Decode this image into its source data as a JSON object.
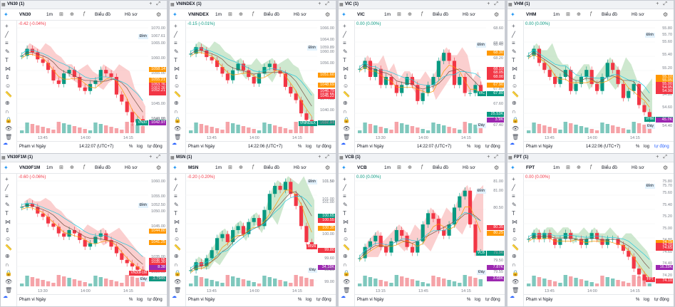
{
  "common": {
    "timeframe": "1m",
    "chart_type_label": "Biểu đồ",
    "profile_label": "Hồ sơ",
    "range_label": "Phạm vi Ngày",
    "pct_label": "%",
    "log_label": "log",
    "auto_label": "tự động"
  },
  "colors": {
    "up": "#089981",
    "down": "#f23645",
    "cloud_up": "#a5d6a7",
    "cloud_down": "#f7a8a8",
    "accent": "#2962ff",
    "volume_up": "#7fc8bd",
    "volume_down": "#f5a3a8"
  },
  "panels": [
    {
      "tab": "VN30 (1)",
      "symbol": "VN30",
      "change": "-0.42 (-0.04%)",
      "change_dir": "neg",
      "time": "14:22:07 (UTC+7)",
      "auto_selected": false,
      "tag": "VN30",
      "tag_color": "#089981",
      "chart_data": {
        "type": "candlestick",
        "title": "",
        "x_ticks": [
          "13:45",
          "14:00",
          "14:15"
        ],
        "y_ticks": [
          "1070.00",
          "1065.00",
          "1060.00",
          "1055.00",
          "1050.00",
          "1045.00",
          "1040.00"
        ],
        "ylim": [
          1040,
          1072
        ],
        "closes": [
          1062,
          1064,
          1063,
          1061,
          1060,
          1058,
          1055,
          1054,
          1057,
          1058,
          1056,
          1053,
          1052,
          1054,
          1055,
          1058,
          1057,
          1056,
          1051,
          1049,
          1046,
          1043,
          1044,
          1043
        ],
        "price_labels": [
          {
            "text": "Đỉnh",
            "value": "1067.61",
            "color": "#ffffff",
            "kind": "txt"
          },
          {
            "text": "",
            "value": "1058.14",
            "color": "#ff9800"
          },
          {
            "text": "",
            "value": "1055.21",
            "color": "#ff9800"
          },
          {
            "text": "",
            "value": "1053.76",
            "color": "#f23645"
          },
          {
            "text": "",
            "value": "1052.76",
            "color": "#f23645"
          },
          {
            "text": "",
            "value": "1051.49",
            "color": "#f23645"
          },
          {
            "text": "",
            "value": "1052.21",
            "color": "#f23645"
          },
          {
            "text": "",
            "value": "1043.17",
            "color": "#089981"
          },
          {
            "text": "",
            "value": "1043.92",
            "color": "#7a7f89",
            "kind": "txt"
          },
          {
            "text": "Đáy",
            "value": "1042.97",
            "color": "#ffffff",
            "kind": "txt"
          },
          {
            "text": "",
            "value": "1042.97",
            "color": "#9c27b0"
          }
        ]
      }
    },
    {
      "tab": "VNINDEX (1)",
      "symbol": "VNINDEX",
      "change": "-0.15 (-0.01%)",
      "change_dir": "pos",
      "time": "14:22:06 (UTC+7)",
      "auto_selected": false,
      "tag": "VNINDEX",
      "tag_color": "#089981",
      "chart_data": {
        "type": "candlestick",
        "title": "",
        "x_ticks": [
          "13:45",
          "14:00",
          "14:15"
        ],
        "y_ticks": [
          "1066.00",
          "1064.00",
          "1060.00",
          "1056.00",
          "1052.00",
          "1048.00",
          "1044.00",
          "1040.00",
          "1036.00"
        ],
        "ylim": [
          1034,
          1068
        ],
        "closes": [
          1058,
          1060,
          1059,
          1057,
          1056,
          1054,
          1052,
          1050,
          1053,
          1055,
          1053,
          1051,
          1049,
          1052,
          1054,
          1055,
          1053,
          1052,
          1048,
          1046,
          1044,
          1040,
          1038,
          1037
        ],
        "price_labels": [
          {
            "text": "Đỉnh",
            "value": "1059.89",
            "color": "#ffffff",
            "kind": "txt"
          },
          {
            "text": "",
            "value": "1051.60",
            "color": "#ff9800"
          },
          {
            "text": "",
            "value": "1048.69",
            "color": "#ff9800"
          },
          {
            "text": "",
            "value": "1046.79",
            "color": "#f23645"
          },
          {
            "text": "",
            "value": "1045.55",
            "color": "#f23645"
          },
          {
            "text": "",
            "value": "1045.28",
            "color": "#f23645"
          },
          {
            "text": "",
            "value": "1045.22",
            "color": "#f23645"
          },
          {
            "text": "",
            "value": "1037.14",
            "color": "#089981"
          },
          {
            "text": "",
            "value": "1037.14",
            "color": "#7a7f89",
            "kind": "txt"
          },
          {
            "text": "Đáy",
            "value": "1036.91",
            "color": "#ffffff",
            "kind": "txt"
          }
        ]
      }
    },
    {
      "tab": "VIC (1)",
      "symbol": "VIC",
      "change": "0.00 (0.00%)",
      "change_dir": "pos",
      "time": "14:22:07 (UTC+7)",
      "auto_selected": false,
      "tag": "VIC",
      "tag_color": "#089981",
      "chart_data": {
        "type": "candlestick",
        "title": "",
        "x_ticks": [
          "13:30",
          "14:00",
          "14:15"
        ],
        "y_ticks": [
          "68.60",
          "68.40",
          "68.20",
          "68.00",
          "67.80",
          "67.60",
          "67.40"
        ],
        "ylim": [
          67.3,
          68.7
        ],
        "closes": [
          68.1,
          68.2,
          68.0,
          68.1,
          67.9,
          68.0,
          67.9,
          67.8,
          67.9,
          68.0,
          67.9,
          67.7,
          67.8,
          67.9,
          68.0,
          68.2,
          68.3,
          68.2,
          67.9,
          68.0,
          67.8,
          67.8,
          67.9,
          67.8
        ],
        "price_labels": [
          {
            "text": "Đỉnh",
            "value": "68.40",
            "color": "#ffffff",
            "kind": "txt"
          },
          {
            "text": "",
            "value": "68.30",
            "color": "#ff9800"
          },
          {
            "text": "",
            "value": "68.10",
            "color": "#ff9800"
          },
          {
            "text": "",
            "value": "68.10",
            "color": "#f23645"
          },
          {
            "text": "",
            "value": "68.05",
            "color": "#f23645"
          },
          {
            "text": "",
            "value": "68.00",
            "color": "#f23645"
          },
          {
            "text": "",
            "value": "67.90",
            "color": "#ff9800"
          },
          {
            "text": "",
            "value": "67.80",
            "color": "#089981"
          },
          {
            "text": "Đáy",
            "value": "67.40",
            "color": "#ffffff",
            "kind": "txt"
          },
          {
            "text": "",
            "value": "25.53K",
            "color": "#089981"
          },
          {
            "text": "",
            "value": "3.9K",
            "color": "#9c27b0"
          }
        ]
      }
    },
    {
      "tab": "VHM (1)",
      "symbol": "VHM",
      "change": "0.00 (0.00%)",
      "change_dir": "pos",
      "time": "14:22:06 (UTC+7)",
      "auto_selected": true,
      "tag": "VHM",
      "tag_color": "#089981",
      "chart_data": {
        "type": "candlestick",
        "title": "",
        "x_ticks": [
          "13:45",
          "14:00",
          "14:15"
        ],
        "y_ticks": [
          "55.80",
          "55.60",
          "55.40",
          "55.20",
          "55.00",
          "54.80",
          "54.60",
          "54.40"
        ],
        "ylim": [
          54.3,
          55.9
        ],
        "closes": [
          55.4,
          55.5,
          55.3,
          55.2,
          55.1,
          55.0,
          55.1,
          55.2,
          54.9,
          55.0,
          55.1,
          55.2,
          55.0,
          54.9,
          55.1,
          55.3,
          55.2,
          55.0,
          54.8,
          54.9,
          55.0,
          54.7,
          54.6,
          54.5
        ],
        "price_labels": [
          {
            "text": "Đỉnh",
            "value": "55.70",
            "color": "#ffffff",
            "kind": "txt"
          },
          {
            "text": "",
            "value": "55.10",
            "color": "#ff9800"
          },
          {
            "text": "",
            "value": "55.05",
            "color": "#ff9800"
          },
          {
            "text": "",
            "value": "54.95",
            "color": "#f23645"
          },
          {
            "text": "",
            "value": "55.00",
            "color": "#f23645"
          },
          {
            "text": "",
            "value": "54.95",
            "color": "#f23645"
          },
          {
            "text": "",
            "value": "54.90",
            "color": "#f23645"
          },
          {
            "text": "",
            "value": "54.50",
            "color": "#089981"
          },
          {
            "text": "",
            "value": "54.50",
            "color": "#7a7f89",
            "kind": "txt"
          },
          {
            "text": "Đáy",
            "value": "54.40",
            "color": "#ffffff",
            "kind": "txt"
          },
          {
            "text": "",
            "value": "45.7K",
            "color": "#9c27b0"
          }
        ]
      }
    },
    {
      "tab": "VN30F1M (1)",
      "symbol": "VN30F1M",
      "change": "-0.60 (-0.06%)",
      "change_dir": "neg",
      "time": "",
      "auto_selected": false,
      "tag": "VN30F1M",
      "tag_color": "#f23645",
      "chart_data": {
        "type": "candlestick",
        "title": "",
        "x_ticks": [
          "13:30",
          "14:00",
          "14:15"
        ],
        "y_ticks": [
          "1060.00",
          "1055.00",
          "1050.00",
          "1045.00",
          "1040.00",
          "1035.00",
          "1030.00"
        ],
        "ylim": [
          1028,
          1062
        ],
        "closes": [
          1052,
          1053,
          1052,
          1050,
          1049,
          1047,
          1046,
          1044,
          1043,
          1045,
          1044,
          1042,
          1040,
          1041,
          1043,
          1044,
          1042,
          1040,
          1038,
          1036,
          1035,
          1034,
          1033,
          1032
        ],
        "price_labels": [
          {
            "text": "Đỉnh",
            "value": "1052.50",
            "color": "#ffffff",
            "kind": "txt"
          },
          {
            "text": "",
            "value": "1044.80",
            "color": "#ff9800"
          },
          {
            "text": "",
            "value": "1041.25",
            "color": "#ff9800"
          },
          {
            "text": "",
            "value": "1035.05",
            "color": "#f23645"
          },
          {
            "text": "",
            "value": "1036.05",
            "color": "#f23645"
          },
          {
            "text": "",
            "value": "1035.30",
            "color": "#f23645"
          },
          {
            "text": "",
            "value": "1033.20",
            "color": "#f23645"
          },
          {
            "text": "",
            "value": "2.794K",
            "color": "#089981"
          },
          {
            "text": "Đáy",
            "value": "1030.20",
            "color": "#ffffff",
            "kind": "txt"
          },
          {
            "text": "",
            "value": "8.38",
            "color": "#9c27b0"
          }
        ]
      }
    },
    {
      "tab": "MSN (1)",
      "symbol": "MSN",
      "change": "-0.20 (-0.20%)",
      "change_dir": "neg",
      "time": "",
      "auto_selected": false,
      "tag": "MSN",
      "tag_color": "#f23645",
      "chart_data": {
        "type": "candlestick",
        "title": "",
        "x_ticks": [
          "13:45",
          "14:00",
          "14:15"
        ],
        "y_ticks": [
          "101.50",
          "101.00",
          "100.50",
          "100.00",
          "99.50",
          "99.00"
        ],
        "ylim": [
          98.9,
          101.7
        ],
        "closes": [
          99.3,
          99.5,
          99.4,
          99.6,
          99.8,
          100.1,
          100.2,
          100.0,
          100.3,
          100.4,
          100.2,
          100.5,
          100.6,
          100.4,
          100.8,
          101.2,
          101.4,
          101.3,
          101.5,
          101.2,
          100.9,
          100.4,
          100.0,
          99.9
        ],
        "price_labels": [
          {
            "text": "Đỉnh",
            "value": "101.50",
            "color": "#ffffff",
            "kind": "txt"
          },
          {
            "text": "",
            "value": "101.00",
            "color": "#7a7f89",
            "kind": "txt"
          },
          {
            "text": "",
            "value": "100.65",
            "color": "#ff9800"
          },
          {
            "text": "",
            "value": "100.65",
            "color": "#089981"
          },
          {
            "text": "",
            "value": "100.55",
            "color": "#f23645"
          },
          {
            "text": "",
            "value": "100.55",
            "color": "#f23645"
          },
          {
            "text": "",
            "value": "100.35",
            "color": "#ff9800"
          },
          {
            "text": "",
            "value": "99.80",
            "color": "#f23645"
          },
          {
            "text": "",
            "value": "99.60",
            "color": "#7a7f89",
            "kind": "txt"
          },
          {
            "text": "",
            "value": "34.18K",
            "color": "#9c27b0"
          },
          {
            "text": "Đáy",
            "value": "99.30",
            "color": "#ffffff",
            "kind": "txt"
          },
          {
            "text": "",
            "value": "99.00",
            "color": "#7a7f89",
            "kind": "txt"
          }
        ]
      }
    },
    {
      "tab": "VCB (1)",
      "symbol": "VCB",
      "change": "0.00 (0.00%)",
      "change_dir": "pos",
      "time": "",
      "auto_selected": false,
      "tag": "VCB",
      "tag_color": "#089981",
      "chart_data": {
        "type": "candlestick",
        "title": "",
        "x_ticks": [
          "13:15",
          "13:45",
          "14:15"
        ],
        "y_ticks": [
          "81.00",
          "80.50",
          "80.00",
          "79.50"
        ],
        "ylim": [
          79.3,
          81.3
        ],
        "closes": [
          79.8,
          80.0,
          80.1,
          80.2,
          80.0,
          79.9,
          80.1,
          80.3,
          80.2,
          80.0,
          79.9,
          80.1,
          80.4,
          80.6,
          80.5,
          80.3,
          80.2,
          80.4,
          80.7,
          80.9,
          81.0,
          80.4,
          79.9,
          79.9
        ],
        "price_labels": [
          {
            "text": "Đỉnh",
            "value": "81.00",
            "color": "#ffffff",
            "kind": "txt"
          },
          {
            "text": "",
            "value": "80.35",
            "color": "#ff9800"
          },
          {
            "text": "",
            "value": "80.35",
            "color": "#f23645"
          },
          {
            "text": "",
            "value": "80.25",
            "color": "#f23645"
          },
          {
            "text": "",
            "value": "80.35",
            "color": "#ff9800"
          },
          {
            "text": "",
            "value": "80.35",
            "color": "#f23645"
          },
          {
            "text": "",
            "value": "80.25",
            "color": "#ff9800"
          },
          {
            "text": "",
            "value": "79.90",
            "color": "#089981"
          },
          {
            "text": "",
            "value": "79.90",
            "color": "#7a7f89",
            "kind": "txt"
          },
          {
            "text": "",
            "value": "7.87K",
            "color": "#9c27b0"
          },
          {
            "text": "Đáy",
            "value": "79.55",
            "color": "#ffffff",
            "kind": "txt"
          },
          {
            "text": "",
            "value": "3.68K",
            "color": "#9c27b0"
          }
        ]
      }
    },
    {
      "tab": "FPT (1)",
      "symbol": "FPT",
      "change": "0.00 (0.00%)",
      "change_dir": "neg",
      "time": "",
      "auto_selected": false,
      "tag": "FPT",
      "tag_color": "#f23645",
      "chart_data": {
        "type": "candlestick",
        "title": "",
        "x_ticks": [
          "13:45",
          "14:00",
          "14:15"
        ],
        "y_ticks": [
          "75.80",
          "75.60",
          "75.40",
          "75.20",
          "75.00",
          "74.80",
          "74.60",
          "74.40",
          "74.20"
        ],
        "ylim": [
          74.0,
          75.9
        ],
        "closes": [
          74.8,
          74.9,
          74.8,
          74.9,
          74.8,
          74.7,
          74.8,
          74.9,
          74.8,
          74.8,
          74.7,
          74.8,
          74.9,
          74.8,
          74.7,
          74.8,
          74.8,
          74.7,
          74.6,
          74.5,
          74.3,
          74.2,
          74.1,
          74.1
        ],
        "price_labels": [
          {
            "text": "Đỉnh",
            "value": "75.70",
            "color": "#ffffff",
            "kind": "txt"
          },
          {
            "text": "",
            "value": "74.75",
            "color": "#ff9800"
          },
          {
            "text": "",
            "value": "74.70",
            "color": "#ff9800"
          },
          {
            "text": "",
            "value": "74.65",
            "color": "#f23645"
          },
          {
            "text": "",
            "value": "74.70",
            "color": "#f23645"
          },
          {
            "text": "",
            "value": "74.65",
            "color": "#f23645"
          },
          {
            "text": "",
            "value": "74.65",
            "color": "#f23645"
          },
          {
            "text": "Đáy",
            "value": "74.10",
            "color": "#ffffff",
            "kind": "txt"
          },
          {
            "text": "",
            "value": "74.10",
            "color": "#f23645"
          },
          {
            "text": "",
            "value": "16.33K",
            "color": "#9c27b0"
          }
        ]
      }
    }
  ],
  "tools": [
    "crosshair",
    "trend-line",
    "fib",
    "brush",
    "text",
    "pattern",
    "measure",
    "emoji",
    "ruler",
    "zoom",
    "magnet",
    "lock",
    "eye",
    "trash"
  ]
}
